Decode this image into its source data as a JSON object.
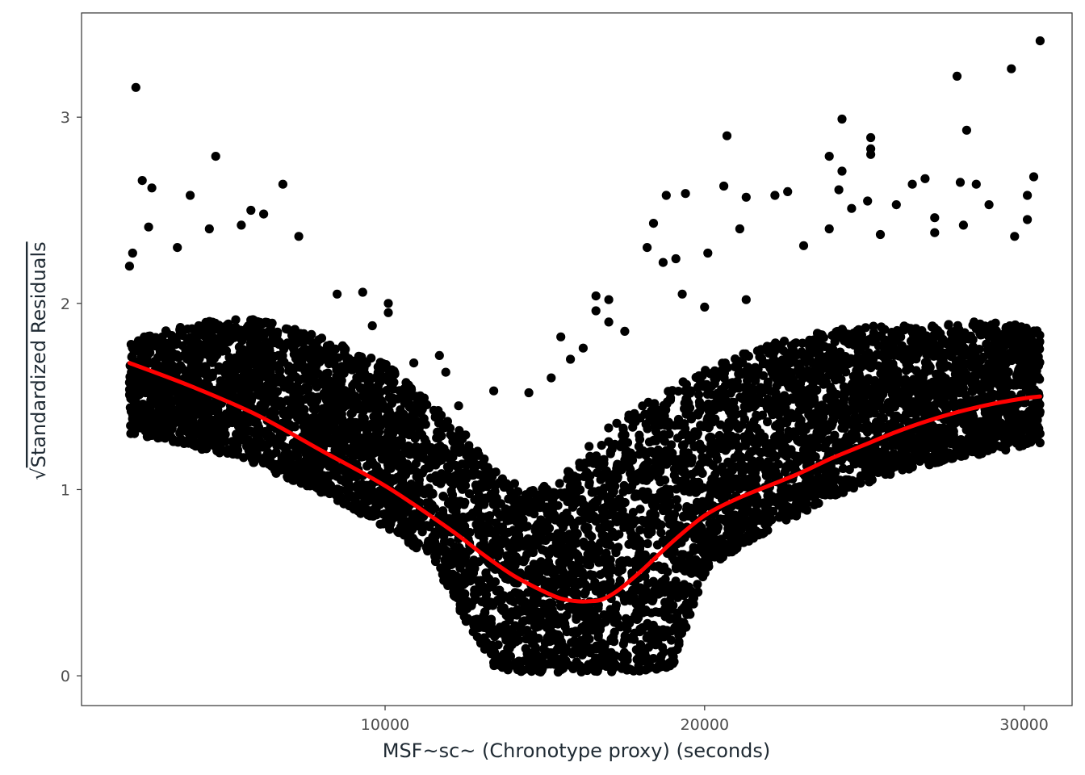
{
  "chart_data": {
    "type": "scatter",
    "title": "",
    "xlabel": "MSF~sc~ (Chronotype proxy) (seconds)",
    "ylabel": "Standardized Residuals",
    "ylabel_prefix": "√",
    "xlim": [
      500,
      31500
    ],
    "ylim": [
      -0.16,
      3.56
    ],
    "x_ticks": [
      10000,
      20000,
      30000
    ],
    "x_tick_labels": [
      "10000",
      "20000",
      "30000"
    ],
    "y_ticks": [
      0,
      1,
      2,
      3
    ],
    "y_tick_labels": [
      "0",
      "1",
      "2",
      "3"
    ],
    "grid": false,
    "legend": "none",
    "colors": {
      "points": "#000000",
      "smooth": "#ff0000",
      "panel_border": "#333333",
      "tick_text": "#4d4d4d"
    },
    "smooth_line": {
      "name": "",
      "x": [
        2000,
        4000,
        6000,
        8000,
        10000,
        12000,
        13000,
        14000,
        15000,
        15500,
        16000,
        16400,
        16800,
        17300,
        18000,
        19000,
        20000,
        21000,
        22000,
        23000,
        24000,
        25000,
        26000,
        27000,
        28000,
        29000,
        30000,
        30500
      ],
      "y": [
        1.68,
        1.55,
        1.4,
        1.21,
        1.02,
        0.79,
        0.66,
        0.54,
        0.45,
        0.415,
        0.4,
        0.4,
        0.41,
        0.46,
        0.56,
        0.72,
        0.86,
        0.95,
        1.02,
        1.09,
        1.17,
        1.24,
        1.31,
        1.37,
        1.42,
        1.46,
        1.49,
        1.5
      ]
    },
    "band": {
      "x": [
        2000,
        4000,
        6000,
        8000,
        10000,
        11500,
        12500,
        13500,
        14500,
        15500,
        16200,
        17000,
        18000,
        19000,
        20000,
        21000,
        22000,
        23000,
        24000,
        25000,
        26000,
        27000,
        28000,
        29000,
        30000,
        30500
      ],
      "lower": [
        1.3,
        1.23,
        1.13,
        0.98,
        0.8,
        0.62,
        0.3,
        0.03,
        0.02,
        0.02,
        0.02,
        0.02,
        0.02,
        0.05,
        0.55,
        0.68,
        0.78,
        0.87,
        0.96,
        1.03,
        1.09,
        1.13,
        1.17,
        1.2,
        1.23,
        1.25
      ],
      "upper": [
        1.8,
        1.9,
        1.92,
        1.82,
        1.68,
        1.45,
        1.3,
        1.1,
        1.0,
        1.05,
        1.2,
        1.35,
        1.45,
        1.55,
        1.65,
        1.72,
        1.78,
        1.82,
        1.86,
        1.88,
        1.88,
        1.88,
        1.9,
        1.9,
        1.88,
        1.85
      ]
    },
    "outliers": [
      {
        "x": 2200,
        "y": 3.16
      },
      {
        "x": 2400,
        "y": 2.66
      },
      {
        "x": 2700,
        "y": 2.62
      },
      {
        "x": 4700,
        "y": 2.79
      },
      {
        "x": 3900,
        "y": 2.58
      },
      {
        "x": 6800,
        "y": 2.64
      },
      {
        "x": 6200,
        "y": 2.48
      },
      {
        "x": 5500,
        "y": 2.42
      },
      {
        "x": 4500,
        "y": 2.4
      },
      {
        "x": 2600,
        "y": 2.41
      },
      {
        "x": 7300,
        "y": 2.36
      },
      {
        "x": 5800,
        "y": 2.5
      },
      {
        "x": 3500,
        "y": 2.3
      },
      {
        "x": 8500,
        "y": 2.05
      },
      {
        "x": 9300,
        "y": 2.06
      },
      {
        "x": 10100,
        "y": 2.0
      },
      {
        "x": 11700,
        "y": 1.72
      },
      {
        "x": 11900,
        "y": 1.63
      },
      {
        "x": 13400,
        "y": 1.53
      },
      {
        "x": 10900,
        "y": 1.68
      },
      {
        "x": 10100,
        "y": 1.95
      },
      {
        "x": 9600,
        "y": 1.88
      },
      {
        "x": 12300,
        "y": 1.45
      },
      {
        "x": 16600,
        "y": 2.04
      },
      {
        "x": 17000,
        "y": 2.02
      },
      {
        "x": 16600,
        "y": 1.96
      },
      {
        "x": 17000,
        "y": 1.9
      },
      {
        "x": 17500,
        "y": 1.85
      },
      {
        "x": 15500,
        "y": 1.82
      },
      {
        "x": 16200,
        "y": 1.76
      },
      {
        "x": 15800,
        "y": 1.7
      },
      {
        "x": 15200,
        "y": 1.6
      },
      {
        "x": 14500,
        "y": 1.52
      },
      {
        "x": 18400,
        "y": 2.43
      },
      {
        "x": 18200,
        "y": 2.3
      },
      {
        "x": 18700,
        "y": 2.22
      },
      {
        "x": 18800,
        "y": 2.58
      },
      {
        "x": 19400,
        "y": 2.59
      },
      {
        "x": 19100,
        "y": 2.24
      },
      {
        "x": 20100,
        "y": 2.27
      },
      {
        "x": 20700,
        "y": 2.9
      },
      {
        "x": 20600,
        "y": 2.63
      },
      {
        "x": 21300,
        "y": 2.57
      },
      {
        "x": 21100,
        "y": 2.4
      },
      {
        "x": 22200,
        "y": 2.58
      },
      {
        "x": 22600,
        "y": 2.6
      },
      {
        "x": 23100,
        "y": 2.31
      },
      {
        "x": 23900,
        "y": 2.4
      },
      {
        "x": 23900,
        "y": 2.79
      },
      {
        "x": 24200,
        "y": 2.61
      },
      {
        "x": 24300,
        "y": 2.99
      },
      {
        "x": 24300,
        "y": 2.71
      },
      {
        "x": 24600,
        "y": 2.51
      },
      {
        "x": 25200,
        "y": 2.89
      },
      {
        "x": 25200,
        "y": 2.83
      },
      {
        "x": 25200,
        "y": 2.8
      },
      {
        "x": 25100,
        "y": 2.55
      },
      {
        "x": 26000,
        "y": 2.53
      },
      {
        "x": 26500,
        "y": 2.64
      },
      {
        "x": 26900,
        "y": 2.67
      },
      {
        "x": 27200,
        "y": 2.46
      },
      {
        "x": 27900,
        "y": 3.22
      },
      {
        "x": 28200,
        "y": 2.93
      },
      {
        "x": 28000,
        "y": 2.65
      },
      {
        "x": 28500,
        "y": 2.64
      },
      {
        "x": 28900,
        "y": 2.53
      },
      {
        "x": 29600,
        "y": 3.26
      },
      {
        "x": 30300,
        "y": 2.68
      },
      {
        "x": 30100,
        "y": 2.58
      },
      {
        "x": 30100,
        "y": 2.45
      },
      {
        "x": 30500,
        "y": 3.41
      },
      {
        "x": 28100,
        "y": 2.42
      },
      {
        "x": 29700,
        "y": 2.36
      },
      {
        "x": 27200,
        "y": 2.38
      },
      {
        "x": 25500,
        "y": 2.37
      },
      {
        "x": 21300,
        "y": 2.02
      },
      {
        "x": 20000,
        "y": 1.98
      },
      {
        "x": 19300,
        "y": 2.05
      },
      {
        "x": 2000,
        "y": 2.2
      },
      {
        "x": 2100,
        "y": 2.27
      }
    ]
  }
}
